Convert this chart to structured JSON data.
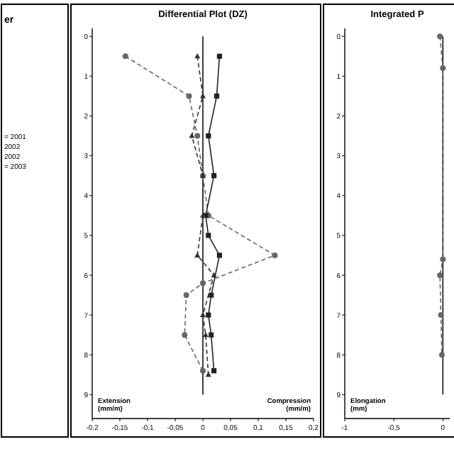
{
  "chart_data": [
    {
      "type": "other",
      "title": "er",
      "annotations": [
        "= 2001",
        "2002",
        "2002",
        "= 2003"
      ]
    },
    {
      "type": "line",
      "title": "Differential Plot (DZ)",
      "annotations": [
        "Extension (mm/m)",
        "Compression (mm/m)"
      ],
      "xlim": [
        -0.2,
        0.2
      ],
      "xticks": [
        {
          "value": -0.2,
          "label": "-0,2"
        },
        {
          "value": -0.15,
          "label": "-0,15"
        },
        {
          "value": -0.1,
          "label": "-0,1"
        },
        {
          "value": -0.05,
          "label": "-0,05"
        },
        {
          "value": 0,
          "label": "0"
        },
        {
          "value": 0.05,
          "label": "0,05"
        },
        {
          "value": 0.1,
          "label": "0,1"
        },
        {
          "value": 0.15,
          "label": "0,15"
        },
        {
          "value": 0.2,
          "label": "0,2"
        }
      ],
      "ylim": [
        9.6,
        -0.2
      ],
      "yticks": [
        0,
        1,
        2,
        3,
        4,
        5,
        6,
        7,
        8,
        9
      ],
      "grid": false,
      "series": [
        {
          "color": "#111111",
          "marker": "none",
          "line_style": "solid",
          "x": [
            0,
            0,
            0,
            0,
            0,
            0,
            0,
            0,
            0,
            0
          ],
          "values": [
            0,
            1,
            2,
            3,
            4,
            5,
            6,
            7,
            8,
            9
          ]
        },
        {
          "color": "#666666",
          "marker": "circle",
          "line_style": "dashed",
          "x": [
            -0.14,
            -0.025,
            -0.01,
            0,
            0.01,
            0.13,
            0,
            -0.03,
            -0.033,
            0
          ],
          "values": [
            0.5,
            1.5,
            2.5,
            3.5,
            4.5,
            5.5,
            6.2,
            6.5,
            7.5,
            8.4
          ]
        },
        {
          "color": "#222222",
          "marker": "square",
          "line_style": "solid",
          "x": [
            0.03,
            0.025,
            0.01,
            0.02,
            0.005,
            0.01,
            0.03,
            0.015,
            0.01,
            0.015,
            0.02
          ],
          "values": [
            0.5,
            1.5,
            2.5,
            3.5,
            4.5,
            5,
            5.5,
            6.5,
            7,
            7.5,
            8.4
          ]
        },
        {
          "color": "#333333",
          "marker": "triangle",
          "line_style": "dashed",
          "x": [
            -0.01,
            0,
            -0.02,
            0,
            0,
            -0.01,
            0.02,
            0,
            0.005,
            0.01
          ],
          "values": [
            0.5,
            1.5,
            2.5,
            3.5,
            4.5,
            5.5,
            6,
            7,
            7.5,
            8.5
          ]
        }
      ]
    },
    {
      "type": "line",
      "title": "Integrated P",
      "annotations": [
        "Elongation (mm)"
      ],
      "xlim": [
        -1,
        0.07
      ],
      "xticks": [
        -1,
        {
          "value": -0.5,
          "label": "-0,5"
        },
        {
          "value": 0,
          "label": "0"
        }
      ],
      "ylim": [
        9.6,
        -0.2
      ],
      "yticks": [
        0,
        1,
        2,
        3,
        4,
        5,
        6,
        7,
        8,
        9
      ],
      "grid": false,
      "series": [
        {
          "color": "#111111",
          "marker": "none",
          "line_style": "solid",
          "x": [
            0,
            0,
            0,
            0,
            0,
            0,
            0,
            0,
            0,
            0
          ],
          "values": [
            0,
            1,
            2,
            3,
            4,
            5,
            6,
            7,
            8,
            9
          ]
        },
        {
          "color": "#666666",
          "marker": "circle",
          "line_style": "dashed",
          "x": [
            -0.03,
            0,
            0,
            -0.03,
            -0.02,
            -0.01
          ],
          "values": [
            0,
            0.8,
            5.6,
            6,
            7,
            8
          ]
        }
      ]
    }
  ]
}
